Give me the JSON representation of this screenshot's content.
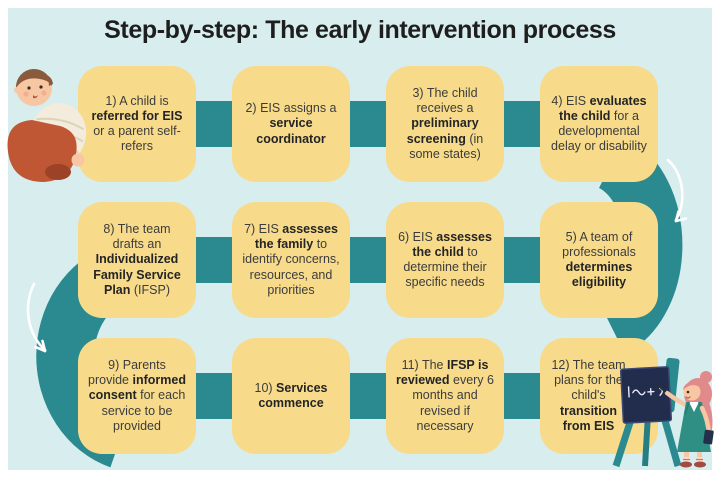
{
  "title": "Step-by-step: The early intervention process",
  "colors": {
    "background": "#d8edee",
    "frame": "#ffffff",
    "step_box": "#f7db8b",
    "connector_teal": "#2a8a8f",
    "title_text": "#1e1e1e",
    "body_text": "#3c3c3c"
  },
  "steps": [
    {
      "number": 1,
      "segments": [
        {
          "text": "1) A child is ",
          "bold": false
        },
        {
          "text": "referred for EIS",
          "bold": true
        },
        {
          "text": " or a parent self-refers",
          "bold": false
        }
      ]
    },
    {
      "number": 2,
      "segments": [
        {
          "text": "2) EIS assigns a ",
          "bold": false
        },
        {
          "text": "service coordinator",
          "bold": true
        }
      ]
    },
    {
      "number": 3,
      "segments": [
        {
          "text": "3) The child receives a ",
          "bold": false
        },
        {
          "text": "preliminary screening",
          "bold": true
        },
        {
          "text": " (in some states)",
          "bold": false
        }
      ]
    },
    {
      "number": 4,
      "segments": [
        {
          "text": "4) EIS ",
          "bold": false
        },
        {
          "text": "evaluates the child",
          "bold": true
        },
        {
          "text": " for a developmental delay or disability",
          "bold": false
        }
      ]
    },
    {
      "number": 5,
      "segments": [
        {
          "text": "5) A team of professionals ",
          "bold": false
        },
        {
          "text": "determines eligibility",
          "bold": true
        }
      ]
    },
    {
      "number": 6,
      "segments": [
        {
          "text": "6) EIS ",
          "bold": false
        },
        {
          "text": "assesses the child",
          "bold": true
        },
        {
          "text": " to determine their specific needs",
          "bold": false
        }
      ]
    },
    {
      "number": 7,
      "segments": [
        {
          "text": "7) EIS ",
          "bold": false
        },
        {
          "text": "assesses the family",
          "bold": true
        },
        {
          "text": " to identify concerns, resources, and priorities",
          "bold": false
        }
      ]
    },
    {
      "number": 8,
      "segments": [
        {
          "text": "8) The team drafts an ",
          "bold": false
        },
        {
          "text": "Individualized Family Service Plan",
          "bold": true
        },
        {
          "text": " (IFSP)",
          "bold": false
        }
      ]
    },
    {
      "number": 9,
      "segments": [
        {
          "text": "9) Parents provide ",
          "bold": false
        },
        {
          "text": "informed consent",
          "bold": true
        },
        {
          "text": " for each service to be provided",
          "bold": false
        }
      ]
    },
    {
      "number": 10,
      "segments": [
        {
          "text": "10) ",
          "bold": false
        },
        {
          "text": "Services commence",
          "bold": true
        }
      ]
    },
    {
      "number": 11,
      "segments": [
        {
          "text": "11) The ",
          "bold": false
        },
        {
          "text": "IFSP is reviewed",
          "bold": true
        },
        {
          "text": " every 6 months and revised if necessary",
          "bold": false
        }
      ]
    },
    {
      "number": 12,
      "segments": [
        {
          "text": "12) The team plans for the child's ",
          "bold": false
        },
        {
          "text": "transition from EIS",
          "bold": true
        }
      ]
    }
  ],
  "flow_rows_display_order": [
    [
      "1",
      "2",
      "3",
      "4"
    ],
    [
      "8",
      "7",
      "6",
      "5"
    ],
    [
      "9",
      "10",
      "11",
      "12"
    ]
  ],
  "illustrations": {
    "top_left": "crawling-baby",
    "bottom_right": "teacher-writing-on-chalkboard"
  }
}
